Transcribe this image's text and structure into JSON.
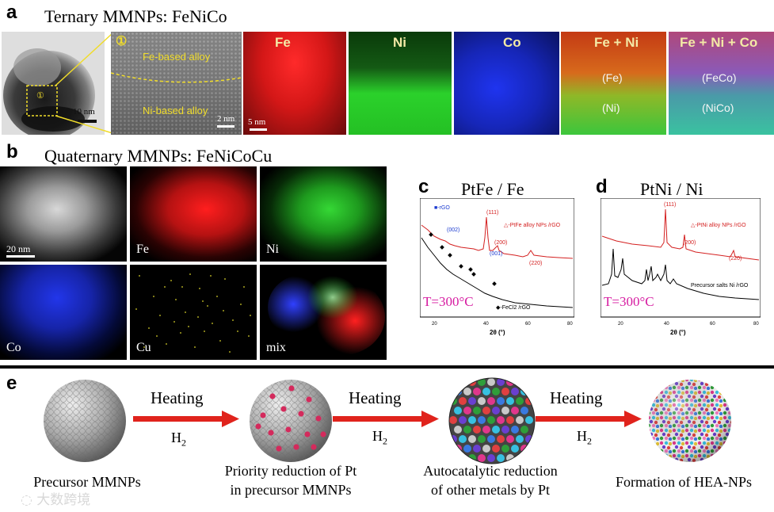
{
  "panel_a": {
    "letter": "a",
    "title": "Ternary MMNPs: FeNiCo",
    "scale_tem": "10 nm",
    "circle_num": "①",
    "region_top": "Fe-based alloy",
    "region_bottom": "Ni-based alloy",
    "scale_hr": "2 nm",
    "scale_map": "5 nm",
    "maps": [
      {
        "label": "Fe",
        "color": "#d81717"
      },
      {
        "label": "Ni",
        "color": "#1fc21f"
      },
      {
        "label": "Co",
        "color": "#1b2ee0"
      },
      {
        "label": "Fe + Ni",
        "top": "(Fe)",
        "bottom": "(Ni)"
      },
      {
        "label": "Fe + Ni + Co",
        "top": "(FeCo)",
        "bottom": "(NiCo)"
      }
    ]
  },
  "panel_b": {
    "letter": "b",
    "title": "Quaternary MMNPs: FeNiCoCu",
    "scale": "20 nm",
    "maps": [
      {
        "label": "Fe",
        "color": "#e01515"
      },
      {
        "label": "Ni",
        "color": "#22c522"
      },
      {
        "label": "Co",
        "color": "#1a2fd8"
      },
      {
        "label": "Cu",
        "color": "#d8d12a"
      },
      {
        "label": "mix"
      }
    ]
  },
  "panel_c": {
    "letter": "c",
    "title": "PtFe / Fe",
    "temperature": "T=300°C",
    "xlabel": "2θ (°)",
    "ticks": [
      "20",
      "40",
      "60",
      "80"
    ],
    "legend_top": "■-rGO",
    "legend_red": "△-PtFe alloy NPs /rGO",
    "legend_black": "◆-FeCl2 /rGO",
    "peaks": [
      "(111)",
      "(200)",
      "(220)",
      "(002)",
      "(001)"
    ]
  },
  "panel_d": {
    "letter": "d",
    "title": "PtNi / Ni",
    "temperature": "T=300°C",
    "xlabel": "2θ (°)",
    "ticks": [
      "20",
      "40",
      "60",
      "80"
    ],
    "legend_red": "△-PtNi alloy NPs /rGO",
    "legend_black": "Precursor salts Ni /rGO",
    "peaks": [
      "(111)",
      "(200)",
      "(220)"
    ]
  },
  "panel_e": {
    "letter": "e",
    "arrows": [
      {
        "heating": "Heating",
        "gas": "H",
        "sub": "2"
      },
      {
        "heating": "Heating",
        "gas": "H",
        "sub": "2"
      },
      {
        "heating": "Heating",
        "gas": "H",
        "sub": "2"
      }
    ],
    "steps": [
      {
        "line1": "Precursor MMNPs",
        "line2": ""
      },
      {
        "line1": "Priority reduction of Pt",
        "line2": "in precursor MMNPs"
      },
      {
        "line1": "Autocatalytic reduction",
        "line2": "of other metals by Pt"
      },
      {
        "line1": "Formation of HEA-NPs",
        "line2": ""
      }
    ],
    "colors": {
      "arrow": "#e0231c",
      "sphere_gray": "#a9a9a9",
      "pt_pink": "#d42a5c"
    }
  },
  "watermark": "大数跨境"
}
